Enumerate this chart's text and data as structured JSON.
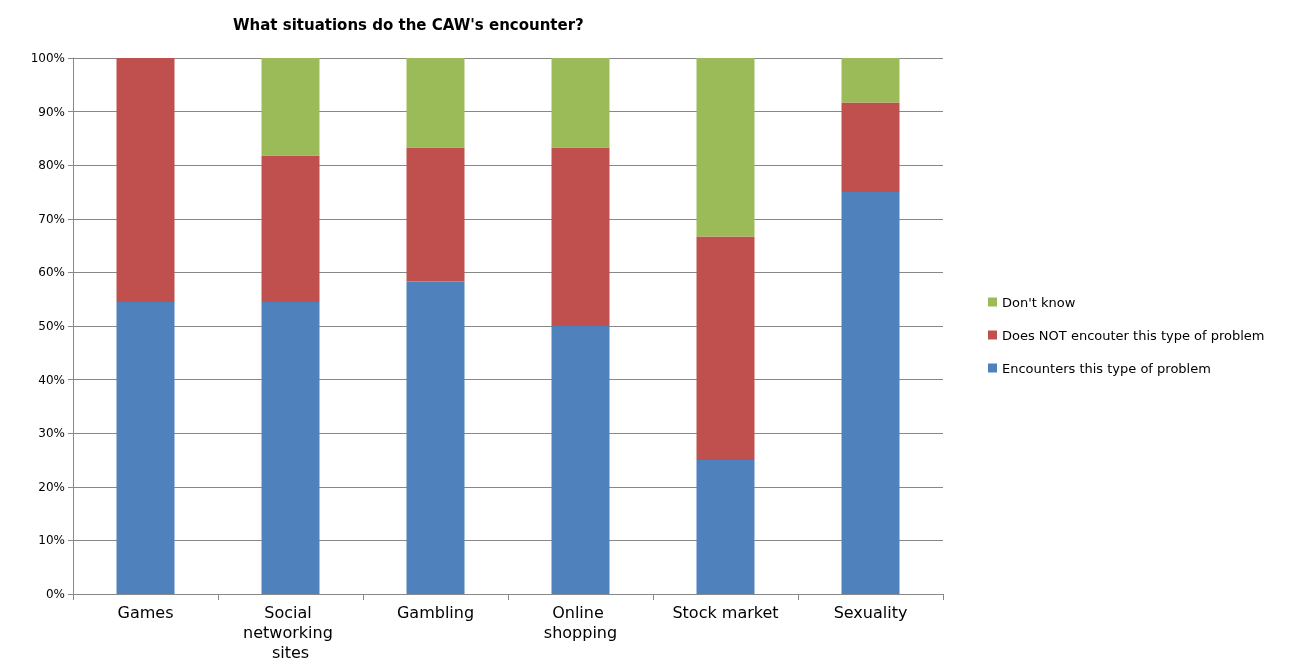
{
  "chart_data": {
    "type": "bar",
    "title": "What situations do the CAW's encounter?",
    "stacked": true,
    "categories": [
      "Games",
      "Social networking sites",
      "Gambling",
      "Online shopping",
      "Stock market",
      "Sexuality"
    ],
    "series": [
      {
        "name": "Encounters this type of problem",
        "color": "#4f81bd",
        "values": [
          54.5,
          54.5,
          58.3,
          50,
          25,
          75
        ]
      },
      {
        "name": "Does NOT encouter this type of problem",
        "color": "#c0504d",
        "values": [
          45.5,
          27.3,
          25,
          33.3,
          41.7,
          16.7
        ]
      },
      {
        "name": "Don't know",
        "color": "#9bbb59",
        "values": [
          0,
          18.2,
          16.7,
          16.7,
          33.3,
          8.3
        ]
      }
    ],
    "ylim": [
      0,
      100
    ],
    "yticks": [
      {
        "value": 0,
        "label": "0%"
      },
      {
        "value": 10,
        "label": "10%"
      },
      {
        "value": 20,
        "label": "20%"
      },
      {
        "value": 30,
        "label": "30%"
      },
      {
        "value": 40,
        "label": "40%"
      },
      {
        "value": 50,
        "label": "50%"
      },
      {
        "value": 60,
        "label": "60%"
      },
      {
        "value": 70,
        "label": "70%"
      },
      {
        "value": 80,
        "label": "80%"
      },
      {
        "value": 90,
        "label": "90%"
      },
      {
        "value": 100,
        "label": "100%"
      }
    ],
    "grid": "y",
    "legend": "right"
  }
}
